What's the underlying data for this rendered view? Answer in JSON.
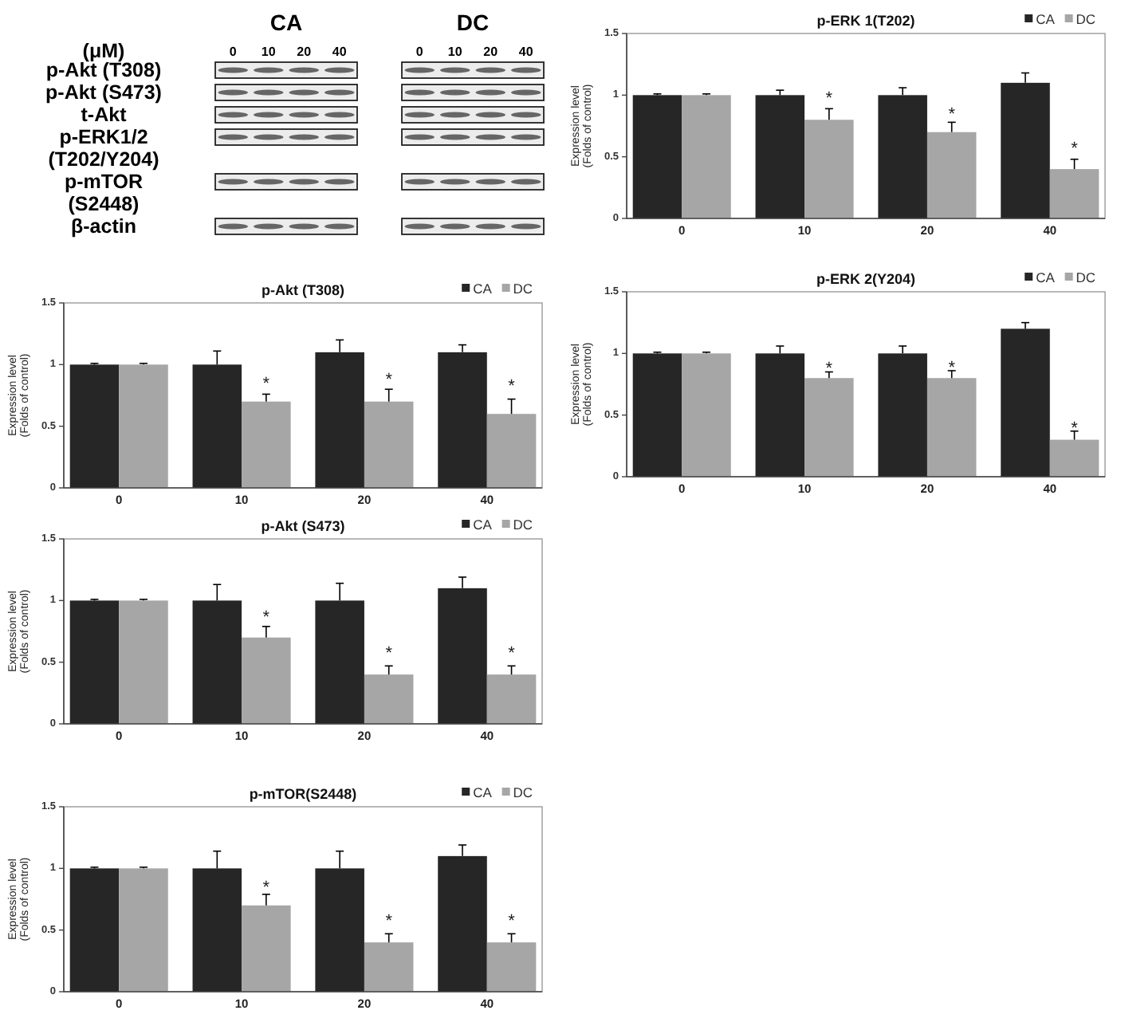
{
  "chart_data": [
    {
      "type": "other",
      "xlabel": "(μM)",
      "annotations": [
        "CA",
        "DC"
      ],
      "categories": [
        "0",
        "10",
        "20",
        "40",
        "0",
        "10",
        "20",
        "40"
      ],
      "y_categories": [
        "p-Akt (T308)",
        "p-Akt (S473)",
        "t-Akt",
        "p-ERK1/2\n(T202/Y204)",
        "p-mTOR\n(S2448)",
        "β-actin"
      ]
    },
    {
      "type": "bar",
      "title": "p-ERK 1(T202)",
      "ylabel": "Expression level\n(Folds of control)",
      "categories": [
        "0",
        "10",
        "20",
        "40"
      ],
      "series": [
        {
          "name": "CA",
          "color": "#262626",
          "values": [
            1,
            1,
            1,
            1.1
          ],
          "errors": [
            [
              1,
              1.01
            ],
            [
              1,
              1.04
            ],
            [
              1,
              1.06
            ],
            [
              1.1,
              1.18
            ]
          ]
        },
        {
          "name": "DC",
          "color": "#a6a6a6",
          "values": [
            1,
            0.8,
            0.7,
            0.4
          ],
          "errors": [
            [
              1,
              1.01
            ],
            [
              0.8,
              0.89
            ],
            [
              0.7,
              0.78
            ],
            [
              0.4,
              0.48
            ]
          ]
        }
      ],
      "ylim": [
        0,
        1.5
      ],
      "yticks": [
        0,
        0.5,
        1,
        1.5
      ],
      "legend": "top right",
      "annotations": [
        {
          "text": "*",
          "x": "10",
          "y": 0.97
        },
        {
          "text": "*",
          "x": "20",
          "y": 0.84
        },
        {
          "text": "*",
          "x": "40",
          "y": 0.56
        }
      ]
    },
    {
      "type": "bar",
      "title": "p-Akt (T308)",
      "ylabel": "Expression level\n(Folds of control)",
      "categories": [
        "0",
        "10",
        "20",
        "40"
      ],
      "series": [
        {
          "name": "CA",
          "color": "#262626",
          "values": [
            1,
            1,
            1.1,
            1.1
          ],
          "errors": [
            [
              1,
              1.01
            ],
            [
              1,
              1.11
            ],
            [
              1.1,
              1.2
            ],
            [
              1.1,
              1.16
            ]
          ]
        },
        {
          "name": "DC",
          "color": "#a6a6a6",
          "values": [
            1,
            0.7,
            0.7,
            0.6
          ],
          "errors": [
            [
              1,
              1.01
            ],
            [
              0.7,
              0.76
            ],
            [
              0.7,
              0.8
            ],
            [
              0.6,
              0.72
            ]
          ]
        }
      ],
      "ylim": [
        0,
        1.5
      ],
      "yticks": [
        0,
        0.5,
        1,
        1.5
      ],
      "legend": "top right",
      "annotations": [
        {
          "text": "*",
          "x": "10",
          "y": 0.84
        },
        {
          "text": "*",
          "x": "20",
          "y": 0.87
        },
        {
          "text": "*",
          "x": "40",
          "y": 0.82
        }
      ]
    },
    {
      "type": "bar",
      "title": "p-ERK 2(Y204)",
      "ylabel": "Expression level\n(Folds of control)",
      "categories": [
        "0",
        "10",
        "20",
        "40"
      ],
      "series": [
        {
          "name": "CA",
          "color": "#262626",
          "values": [
            1,
            1,
            1,
            1.2
          ],
          "errors": [
            [
              1,
              1.01
            ],
            [
              1,
              1.06
            ],
            [
              1,
              1.06
            ],
            [
              1.2,
              1.25
            ]
          ]
        },
        {
          "name": "DC",
          "color": "#a6a6a6",
          "values": [
            1,
            0.8,
            0.8,
            0.3
          ],
          "errors": [
            [
              1,
              1.01
            ],
            [
              0.8,
              0.85
            ],
            [
              0.8,
              0.86
            ],
            [
              0.3,
              0.37
            ]
          ]
        }
      ],
      "ylim": [
        0,
        1.5
      ],
      "yticks": [
        0,
        0.5,
        1,
        1.5
      ],
      "legend": "top right",
      "annotations": [
        {
          "text": "*",
          "x": "10",
          "y": 0.87
        },
        {
          "text": "*",
          "x": "20",
          "y": 0.88
        },
        {
          "text": "*",
          "x": "40",
          "y": 0.39
        }
      ]
    },
    {
      "type": "bar",
      "title": "p-Akt (S473)",
      "ylabel": "Expression level\n(Folds of control)",
      "categories": [
        "0",
        "10",
        "20",
        "40"
      ],
      "series": [
        {
          "name": "CA",
          "color": "#262626",
          "values": [
            1,
            1,
            1,
            1.1
          ],
          "errors": [
            [
              1,
              1.01
            ],
            [
              1,
              1.13
            ],
            [
              1,
              1.14
            ],
            [
              1.1,
              1.19
            ]
          ]
        },
        {
          "name": "DC",
          "color": "#a6a6a6",
          "values": [
            1,
            0.7,
            0.4,
            0.4
          ],
          "errors": [
            [
              1,
              1.01
            ],
            [
              0.7,
              0.79
            ],
            [
              0.4,
              0.47
            ],
            [
              0.4,
              0.47
            ]
          ]
        }
      ],
      "ylim": [
        0,
        1.5
      ],
      "yticks": [
        0,
        0.5,
        1,
        1.5
      ],
      "legend": "top right",
      "annotations": [
        {
          "text": "*",
          "x": "10",
          "y": 0.86
        },
        {
          "text": "*",
          "x": "20",
          "y": 0.57
        },
        {
          "text": "*",
          "x": "40",
          "y": 0.57
        }
      ]
    },
    {
      "type": "bar",
      "title": "p-mTOR(S2448)",
      "ylabel": "Expression level\n(Folds of control)",
      "categories": [
        "0",
        "10",
        "20",
        "40"
      ],
      "series": [
        {
          "name": "CA",
          "color": "#262626",
          "values": [
            1,
            1,
            1,
            1.1
          ],
          "errors": [
            [
              1,
              1.01
            ],
            [
              1,
              1.14
            ],
            [
              1,
              1.14
            ],
            [
              1.1,
              1.19
            ]
          ]
        },
        {
          "name": "DC",
          "color": "#a6a6a6",
          "values": [
            1,
            0.7,
            0.4,
            0.4
          ],
          "errors": [
            [
              1,
              1.01
            ],
            [
              0.7,
              0.79
            ],
            [
              0.4,
              0.47
            ],
            [
              0.4,
              0.47
            ]
          ]
        }
      ],
      "ylim": [
        0,
        1.5
      ],
      "yticks": [
        0,
        0.5,
        1,
        1.5
      ],
      "legend": "top right",
      "annotations": [
        {
          "text": "*",
          "x": "10",
          "y": 0.84
        },
        {
          "text": "*",
          "x": "20",
          "y": 0.57
        },
        {
          "text": "*",
          "x": "40",
          "y": 0.57
        }
      ]
    }
  ]
}
